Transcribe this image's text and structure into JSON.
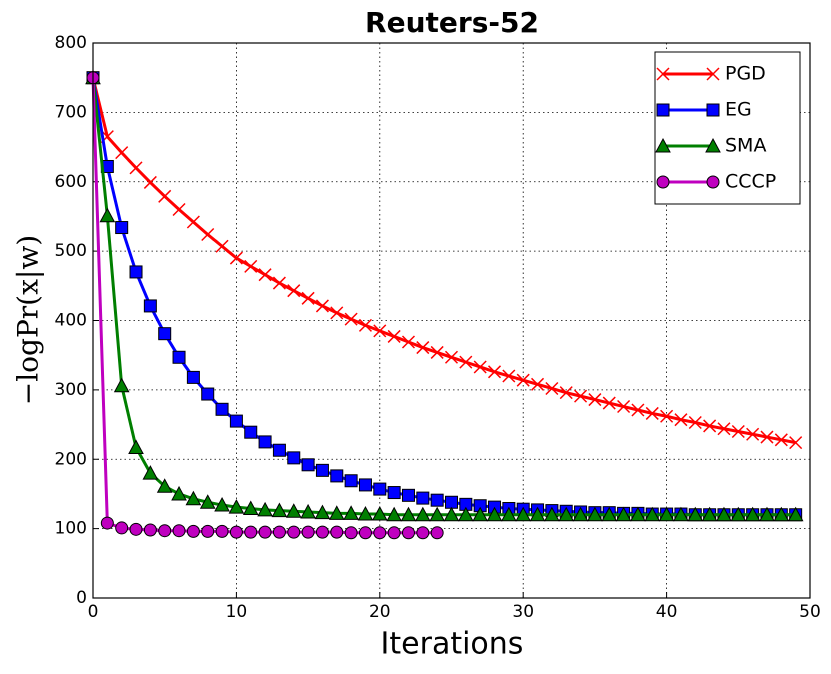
{
  "chart_data": {
    "type": "line",
    "title": "Reuters-52",
    "xlabel": "Iterations",
    "ylabel": "−logPr(x|w)",
    "x": [
      0,
      1,
      2,
      3,
      4,
      5,
      6,
      7,
      8,
      9,
      10,
      11,
      12,
      13,
      14,
      15,
      16,
      17,
      18,
      19,
      20,
      21,
      22,
      23,
      24,
      25,
      26,
      27,
      28,
      29,
      30,
      31,
      32,
      33,
      34,
      35,
      36,
      37,
      38,
      39,
      40,
      41,
      42,
      43,
      44,
      45,
      46,
      47,
      48,
      49
    ],
    "xlim": [
      0,
      50
    ],
    "xticks": [
      0,
      10,
      20,
      30,
      40,
      50
    ],
    "ylim": [
      0,
      800
    ],
    "yticks": [
      0,
      100,
      200,
      300,
      400,
      500,
      600,
      700,
      800
    ],
    "grid": true,
    "legend": "upper right",
    "series": [
      {
        "name": "PGD",
        "color": "#ff0000",
        "marker": "x",
        "values": [
          750,
          665,
          642,
          620,
          599,
          579,
          560,
          542,
          524,
          507,
          490,
          478,
          466,
          454,
          443,
          432,
          421,
          411,
          402,
          393,
          385,
          377,
          369,
          361,
          354,
          347,
          340,
          333,
          326,
          320,
          314,
          308,
          302,
          296,
          291,
          286,
          281,
          276,
          271,
          266,
          262,
          257,
          253,
          248,
          244,
          240,
          236,
          232,
          228,
          224
        ]
      },
      {
        "name": "EG",
        "color": "#0000ff",
        "marker": "square",
        "values": [
          750,
          622,
          534,
          470,
          421,
          381,
          347,
          318,
          294,
          272,
          255,
          239,
          225,
          213,
          202,
          192,
          184,
          176,
          169,
          163,
          157,
          152,
          148,
          144,
          141,
          138,
          135,
          133,
          131,
          129,
          128,
          127,
          126,
          125,
          124,
          123,
          123,
          122,
          122,
          121,
          121,
          121,
          120,
          120,
          120,
          120,
          120,
          120,
          120,
          120
        ]
      },
      {
        "name": "SMA",
        "color": "#007f00",
        "marker": "triangle",
        "values": [
          750,
          551,
          306,
          217,
          180,
          161,
          150,
          143,
          138,
          134,
          131,
          129,
          127,
          126,
          125,
          124,
          123,
          122,
          122,
          121,
          121,
          120,
          120,
          120,
          120,
          120,
          120,
          120,
          120,
          120,
          120,
          120,
          120,
          120,
          120,
          120,
          120,
          120,
          120,
          120,
          120,
          120,
          120,
          120,
          120,
          120,
          120,
          120,
          120,
          120
        ]
      },
      {
        "name": "CCCP",
        "color": "#bf00bf",
        "marker": "circle",
        "values": [
          750,
          108,
          101,
          99,
          98,
          97,
          97,
          96,
          96,
          96,
          95,
          95,
          95,
          95,
          95,
          95,
          95,
          95,
          94,
          94,
          94,
          94,
          94,
          94,
          94,
          null,
          null,
          null,
          null,
          null,
          null,
          null,
          null,
          null,
          null,
          null,
          null,
          null,
          null,
          null,
          null,
          null,
          null,
          null,
          null,
          null,
          null,
          null,
          null,
          null
        ]
      }
    ]
  }
}
